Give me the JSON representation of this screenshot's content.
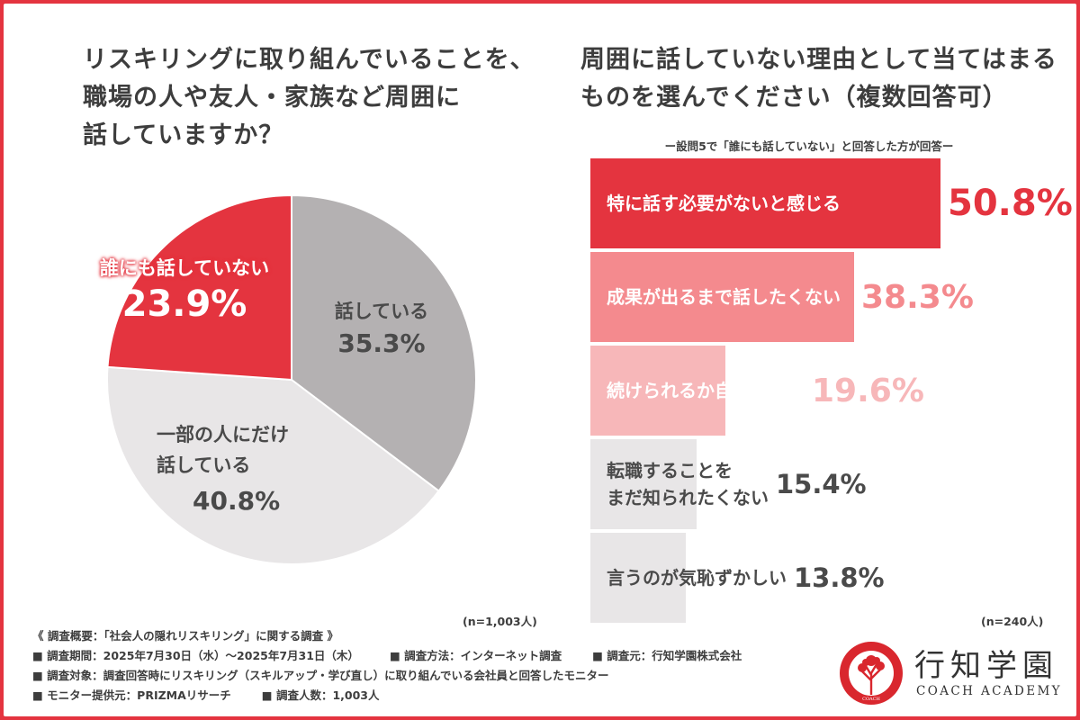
{
  "left_question": [
    "リスキリングに取り組んでいることを、",
    "職場の人や友人・家族など周囲に",
    "話していますか？"
  ],
  "right_question": [
    "周囲に話していない理由として当てはまる",
    "ものを選んでください（複数回答可）"
  ],
  "right_subnote": "ー設問5で「誰にも話していない」と回答した方が回答ー",
  "left_n": "(n=1,003人)",
  "right_n": "(n=240人)",
  "colors": {
    "border": "#e4343f",
    "pie_red": "#e4343f",
    "pie_gray_dark": "#b4b1b2",
    "pie_gray_light": "#e8e6e7",
    "bar_1": "#e4343f",
    "bar_2": "#f48a8e",
    "bar_3": "#f7b7b9",
    "bar_gray": "#e8e6e7"
  },
  "chart_data": [
    {
      "type": "pie",
      "start_angle_deg": 0,
      "direction": "clockwise",
      "slices": [
        {
          "label": "話している",
          "display": "35.3%",
          "value": 35.3,
          "color": "#b4b1b2"
        },
        {
          "label": "一部の人にだけ話している",
          "label_lines": [
            "一部の人にだけ",
            "話している"
          ],
          "display": "40.8%",
          "value": 40.8,
          "color": "#e8e6e7"
        },
        {
          "label": "誰にも話していない",
          "display": "23.9%",
          "value": 23.9,
          "color": "#e4343f"
        }
      ]
    },
    {
      "type": "bar",
      "orientation": "horizontal",
      "xlim": [
        0,
        70
      ],
      "categories": [
        "特に話す必要がないと感じる",
        "成果が出るまで話したくない",
        "続けられるか自信がない",
        "転職することをまだ知られたくない",
        "言うのが気恥ずかしい"
      ],
      "category_lines": [
        [
          "特に話す必要がないと感じる"
        ],
        [
          "成果が出るまで話したくない"
        ],
        [
          "続けられるか自信がない"
        ],
        [
          "転職することを",
          "まだ知られたくない"
        ],
        [
          "言うのが気恥ずかしい"
        ]
      ],
      "values": [
        50.8,
        38.3,
        19.6,
        15.4,
        13.8
      ],
      "value_labels": [
        "50.8%",
        "38.3%",
        "19.6%",
        "15.4%",
        "13.8%"
      ],
      "colors": [
        "#e4343f",
        "#f48a8e",
        "#f7b7b9",
        "#e8e6e7",
        "#e8e6e7"
      ],
      "label_colors": [
        "#ffffff",
        "#ffffff",
        "#ffffff",
        "#4a4a4a",
        "#4a4a4a"
      ],
      "value_colors": [
        "#e4343f",
        "#f48a8e",
        "#f7b7b9",
        "#4a4a4a",
        "#4a4a4a"
      ]
    }
  ],
  "footer": {
    "title": "《 調査概要：「社会人の隠れリスキリング」に関する調査 》",
    "period": "■ 調査期間：2025年7月30日（水）～2025年7月31日（木）",
    "method": "■ 調査方法：インターネット調査",
    "org": "■ 調査元：行知学園株式会社",
    "target": "■ 調査対象：調査回答時にリスキリング（スキルアップ・学び直し）に取り組んでいる会社員と回答したモニター",
    "provider": "■ モニター提供元：PRIZMAリサーチ",
    "count": "■ 調査人数：1,003人"
  },
  "logo": {
    "name": "行知学園",
    "sub": "COACH ACADEMY",
    "ring_text": "KOCHI CORPORATION",
    "mark_sub": "COACH"
  }
}
